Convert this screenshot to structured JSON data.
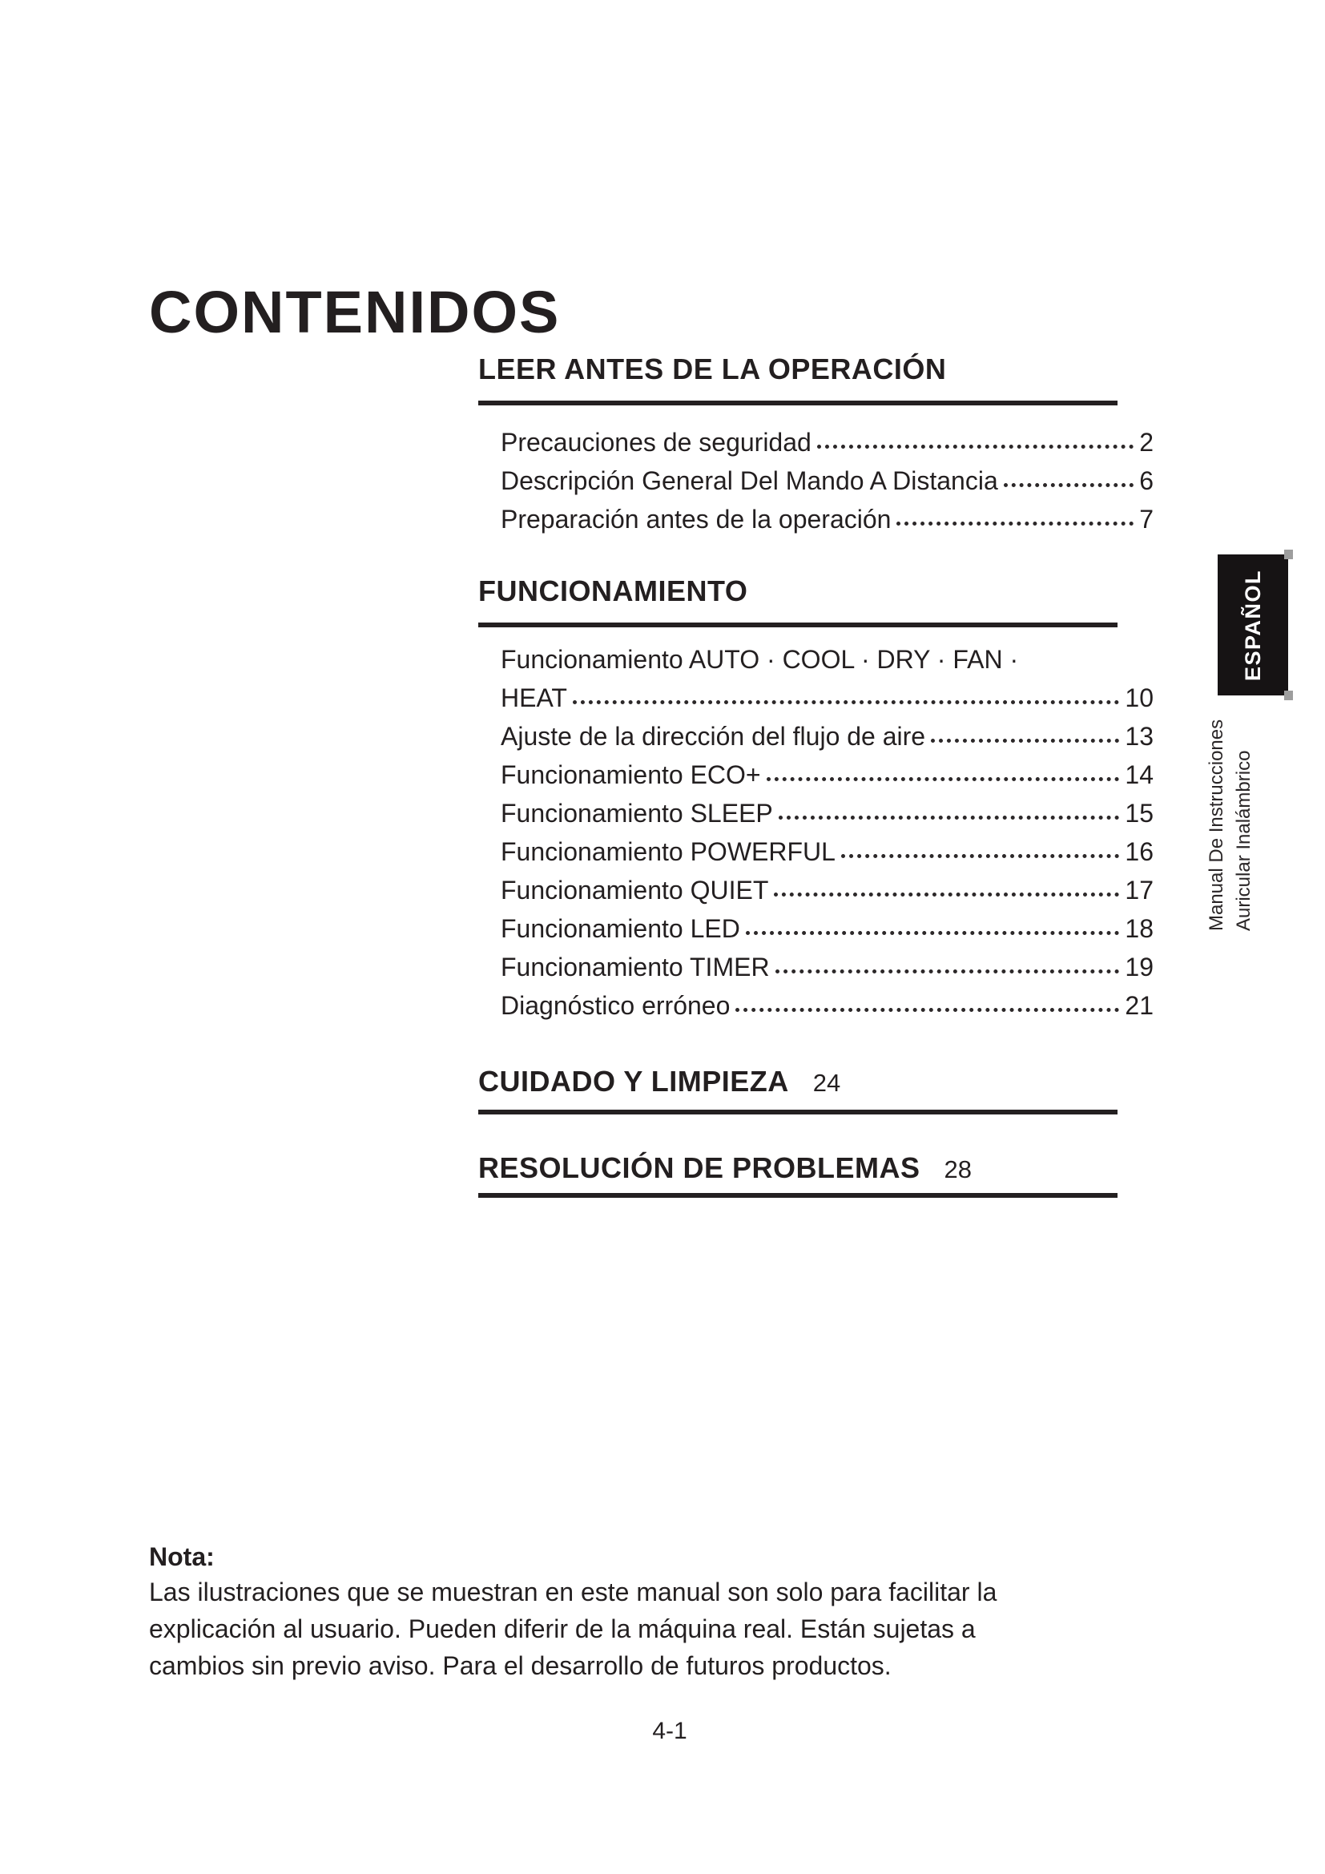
{
  "colors": {
    "ink": "#231f20",
    "tab_bg": "#161314",
    "tab_text": "#ffffff",
    "rule": "#242021",
    "artifact_gray": "#9e9e9e"
  },
  "page": {
    "title": "CONTENIDOS",
    "footer_page_number": "4-1"
  },
  "sidebar": {
    "language_tab": "ESPAÑOL",
    "spine_line1": "Manual De Instrucciones",
    "spine_line2": "Auricular Inalámbrico"
  },
  "toc": {
    "sections": [
      {
        "heading": "LEER ANTES DE LA OPERACIÓN",
        "items": [
          {
            "label": "Precauciones de seguridad",
            "page": "2"
          },
          {
            "label": "Descripción General Del Mando A Distancia",
            "page": "6"
          },
          {
            "label": "Preparación antes de la operación",
            "page": "7"
          }
        ]
      },
      {
        "heading": "FUNCIONAMIENTO",
        "items": [
          {
            "pre": "Funcionamiento AUTO · COOL · DRY · FAN ·",
            "label": "HEAT",
            "page": "10"
          },
          {
            "label": "Ajuste de la dirección del flujo de aire",
            "page": "13"
          },
          {
            "label": "Funcionamiento ECO+",
            "page": "14"
          },
          {
            "label": "Funcionamiento SLEEP",
            "page": "15"
          },
          {
            "label": "Funcionamiento POWERFUL",
            "page": "16"
          },
          {
            "label": "Funcionamiento QUIET",
            "page": "17"
          },
          {
            "label": "Funcionamiento LED",
            "page": "18"
          },
          {
            "label": "Funcionamiento TIMER",
            "page": "19"
          },
          {
            "label": "Diagnóstico erróneo",
            "page": "21"
          }
        ]
      },
      {
        "heading": "CUIDADO Y LIMPIEZA",
        "heading_page": "24",
        "items": []
      },
      {
        "heading": "RESOLUCIÓN DE PROBLEMAS",
        "heading_page": "28",
        "items": []
      }
    ]
  },
  "note": {
    "label": "Nota:",
    "lines": [
      "Las ilustraciones que se muestran en este manual son solo para facilitar la",
      "explicación al usuario. Pueden diferir de la máquina real. Están sujetas a",
      "cambios sin previo aviso. Para el desarrollo de futuros productos."
    ]
  }
}
